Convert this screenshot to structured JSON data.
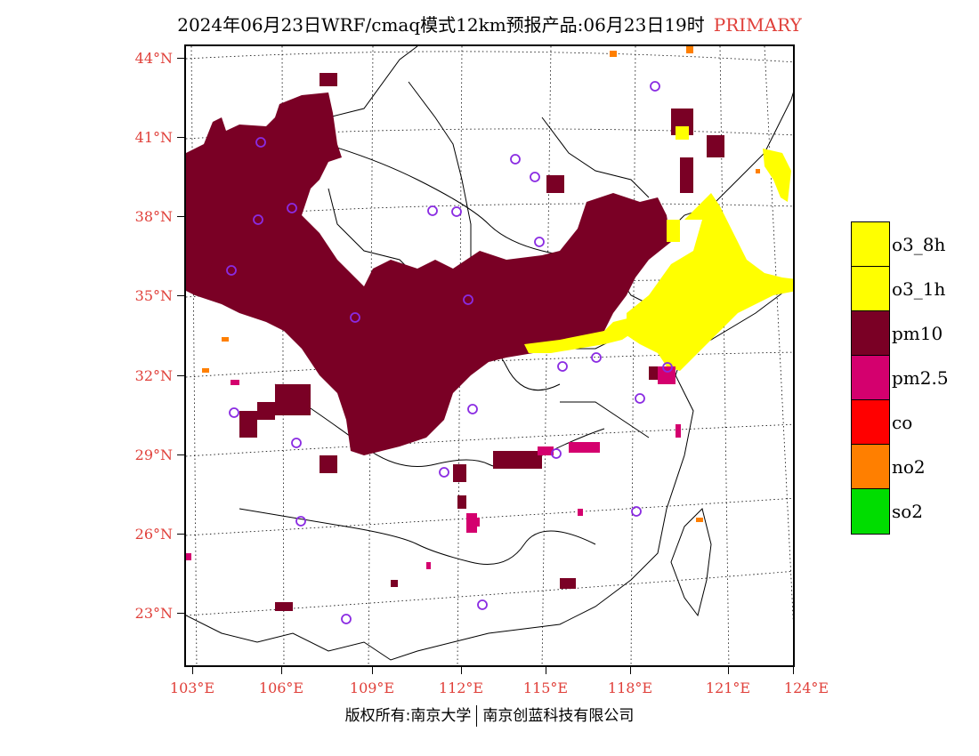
{
  "title": {
    "main": "2024年06月23日WRF/cmaq模式12km预报产品:06月23日19时",
    "tag": "PRIMARY"
  },
  "colors": {
    "label_red": "#e0403a",
    "o3_8h": "#ffff00",
    "o3_1h": "#ffff00",
    "pm10": "#7a0025",
    "pm25": "#d4006e",
    "co": "#ff0000",
    "no2": "#ff7f00",
    "so2": "#00dd00",
    "station": "#8a2be2"
  },
  "map": {
    "lat_labels": [
      "44°N",
      "41°N",
      "38°N",
      "35°N",
      "32°N",
      "29°N",
      "26°N",
      "23°N"
    ],
    "lon_labels": [
      "103°E",
      "106°E",
      "109°E",
      "112°E",
      "115°E",
      "118°E",
      "121°E",
      "124°E"
    ],
    "stations_icon": "circle-station-icon"
  },
  "legend": {
    "items": [
      {
        "label": "o3_8h",
        "color": "#ffff00"
      },
      {
        "label": "o3_1h",
        "color": "#ffff00"
      },
      {
        "label": "pm10",
        "color": "#7a0025"
      },
      {
        "label": "pm2.5",
        "color": "#d4006e"
      },
      {
        "label": "co",
        "color": "#ff0000"
      },
      {
        "label": "no2",
        "color": "#ff7f00"
      },
      {
        "label": "so2",
        "color": "#00dd00"
      }
    ]
  },
  "footer": {
    "left": "版权所有:南京大学",
    "right": "南京创蓝科技有限公司"
  }
}
